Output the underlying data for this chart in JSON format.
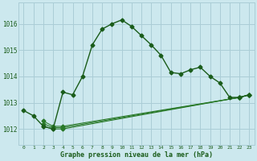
{
  "background_color": "#cce8ee",
  "grid_color": "#aacdd6",
  "line_color": "#1a5c1a",
  "title": "Graphe pression niveau de la mer (hPa)",
  "ylabel_ticks": [
    1012,
    1013,
    1014,
    1015,
    1016
  ],
  "xticks": [
    0,
    1,
    2,
    3,
    4,
    5,
    6,
    7,
    8,
    9,
    10,
    11,
    12,
    13,
    14,
    15,
    16,
    17,
    18,
    19,
    20,
    21,
    22,
    23
  ],
  "ylim": [
    1011.4,
    1016.8
  ],
  "xlim": [
    -0.5,
    23.5
  ],
  "series1": {
    "x": [
      0,
      1,
      2,
      3,
      4,
      5,
      6,
      7,
      8,
      9,
      10,
      11,
      12,
      13,
      14,
      15,
      16,
      17,
      18,
      19,
      20,
      21,
      22,
      23
    ],
    "y": [
      1012.7,
      1012.5,
      1012.1,
      1012.0,
      1013.4,
      1013.3,
      1014.0,
      1015.2,
      1015.8,
      1016.0,
      1016.15,
      1015.9,
      1015.55,
      1015.2,
      1014.8,
      1014.15,
      1014.1,
      1014.25,
      1014.35,
      1014.0,
      1013.75,
      1013.2,
      1013.2,
      1013.3
    ]
  },
  "series2": {
    "x": [
      2,
      3,
      4,
      22,
      23
    ],
    "y": [
      1012.1,
      1012.0,
      1012.0,
      1013.2,
      1013.3
    ]
  },
  "series3": {
    "x": [
      2,
      3,
      4,
      22,
      23
    ],
    "y": [
      1012.2,
      1012.05,
      1012.05,
      1013.2,
      1013.3
    ]
  },
  "series4": {
    "x": [
      2,
      3,
      4,
      22,
      23
    ],
    "y": [
      1012.3,
      1012.1,
      1012.1,
      1013.2,
      1013.3
    ]
  }
}
